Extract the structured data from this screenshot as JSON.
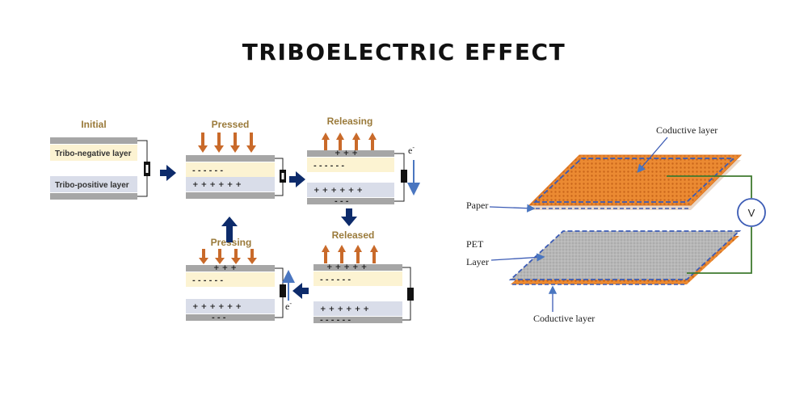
{
  "title": "TRIBOELECTRIC EFFECT",
  "left": {
    "stages": {
      "initial": "Initial",
      "pressed": "Pressed",
      "releasing": "Releasing",
      "pressing": "Pressing",
      "released": "Released"
    },
    "layers": {
      "negative": "Tribo-negative layer",
      "positive": "Tribo-positive layer"
    },
    "electron": "e",
    "electron_sup": "-",
    "colors": {
      "electrode": "#a6a6a6",
      "negative_layer": "#fcf3d2",
      "positive_layer": "#d9dde9",
      "force_arrow": "#c96a2a",
      "flow_arrow": "#0d2b6b",
      "current_arrow": "#4a76c0"
    }
  },
  "right": {
    "labels": {
      "conductive_top": "Coductive layer",
      "paper": "Paper",
      "pet_line1": "PET",
      "pet_line2": "Layer",
      "conductive_bottom": "Coductive layer",
      "voltmeter": "V"
    },
    "colors": {
      "conductive": "#e8852e",
      "pet": "#b3b3b3",
      "outline": "#3b5bb5",
      "wire": "#3f7a2f"
    }
  }
}
